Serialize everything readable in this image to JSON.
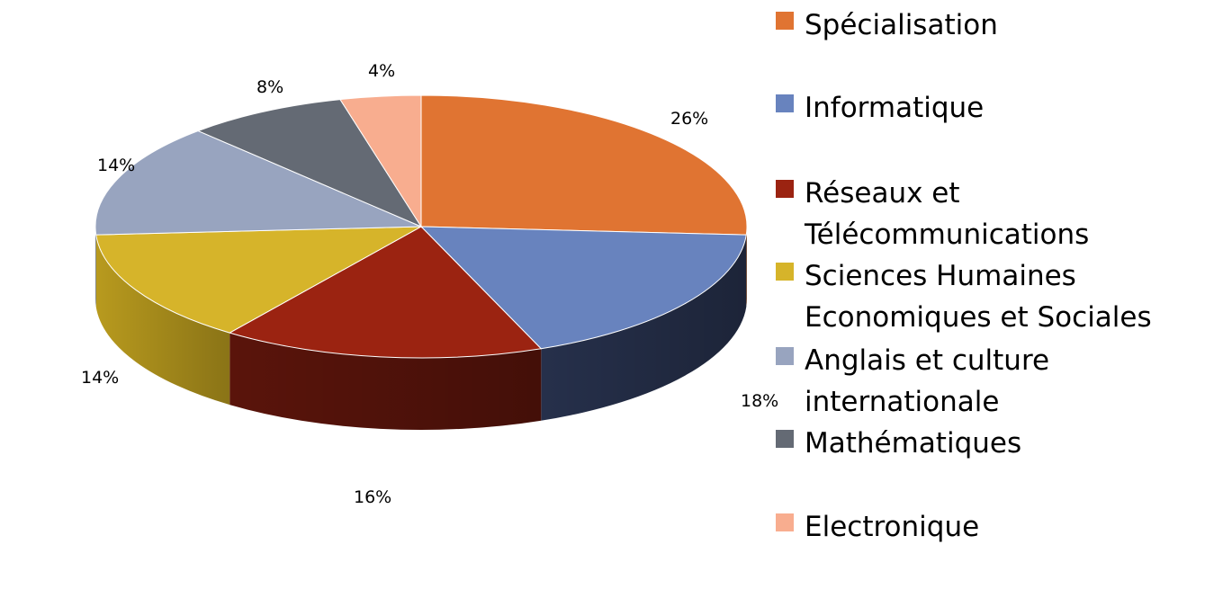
{
  "chart_data": {
    "type": "pie",
    "title": "",
    "style": "3d",
    "legend_position": "right",
    "slices": [
      {
        "label": "Spécialisation",
        "value": 26,
        "value_label": "26%",
        "color": "#E07432",
        "side_color": "#A0521E"
      },
      {
        "label": "Informatique",
        "value": 18,
        "value_label": "18%",
        "color": "#6883BE",
        "side_color": "#26304B"
      },
      {
        "label": "Réseaux et\nTélécommunications",
        "value": 16,
        "value_label": "16%",
        "color": "#9B2311",
        "side_color": "#5A140B"
      },
      {
        "label": "Sciences Humaines\nEconomiques et Sociales",
        "value": 14,
        "value_label": "14%",
        "color": "#D6B42A",
        "side_color": "#B89A1E"
      },
      {
        "label": "Anglais et culture\ninternationale",
        "value": 14,
        "value_label": "14%",
        "color": "#98A4BF",
        "side_color": "#7B869E"
      },
      {
        "label": "Mathématiques",
        "value": 8,
        "value_label": "8%",
        "color": "#646A74",
        "side_color": "#474C54"
      },
      {
        "label": "Electronique",
        "value": 4,
        "value_label": "4%",
        "color": "#F8AD8F",
        "side_color": "#D4917A"
      }
    ]
  }
}
